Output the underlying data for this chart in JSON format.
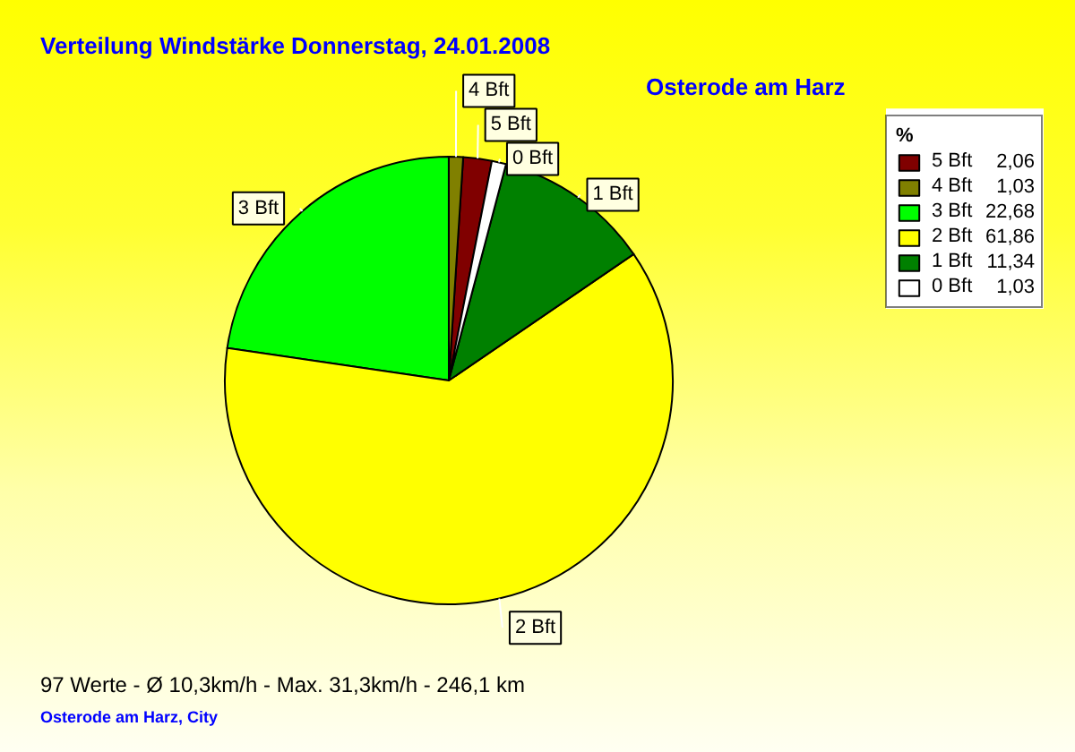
{
  "chart_data": {
    "type": "pie",
    "title": "Verteilung Windstärke  Donnerstag, 24.01.2008",
    "subtitle": "Osterode am Harz",
    "categories": [
      "5 Bft",
      "4 Bft",
      "3 Bft",
      "2 Bft",
      "1 Bft",
      "0 Bft"
    ],
    "values": [
      2.06,
      1.03,
      22.68,
      61.86,
      11.34,
      1.03
    ],
    "value_labels": [
      "2,06",
      "1,03",
      "22,68",
      "61,86",
      "11,34",
      "1,03"
    ],
    "colors": [
      "#800000",
      "#808000",
      "#00ff00",
      "#ffff00",
      "#008000",
      "#ffffff"
    ],
    "legend": "top right",
    "legend_title": "%",
    "annotations": [
      "97 Werte  -  Ø 10,3km/h  -  Max. 31,3km/h  -  246,1 km",
      "Osterode am Harz, City"
    ]
  }
}
